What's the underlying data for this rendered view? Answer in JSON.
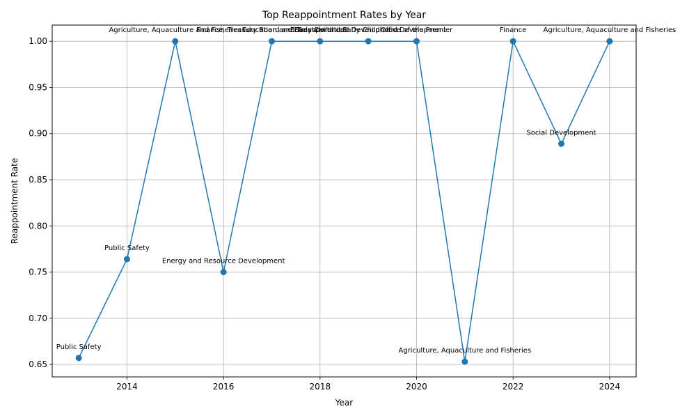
{
  "chart_data": {
    "type": "line",
    "title": "Top Reappointment Rates by Year",
    "xlabel": "Year",
    "ylabel": "Reappointment Rate",
    "xlim": [
      2012.45,
      2024.55
    ],
    "ylim": [
      0.6365,
      1.0175
    ],
    "x_ticks": [
      2014,
      2016,
      2018,
      2020,
      2022,
      2024
    ],
    "y_ticks": [
      0.65,
      0.7,
      0.75,
      0.8,
      0.85,
      0.9,
      0.95,
      1.0
    ],
    "grid": true,
    "series": [
      {
        "color": "#1f77b4",
        "marker": "circle",
        "x": [
          2013,
          2014,
          2015,
          2016,
          2017,
          2018,
          2019,
          2020,
          2021,
          2022,
          2023,
          2024
        ],
        "y": [
          0.657,
          0.764,
          1.0,
          0.75,
          1.0,
          1.0,
          1.0,
          1.0,
          0.653,
          1.0,
          0.889,
          1.0
        ]
      }
    ],
    "annotations": [
      "Public Safety",
      "Public Safety",
      "Agriculture, Aquaculture and Fisheries",
      "Energy and Resource Development",
      "Finance, Treasury Board and Transportation",
      "Education and Early Childhood Development",
      "Education and Early Childhood Development",
      "Office of the Premier",
      "Agriculture, Aquaculture and Fisheries",
      "Finance",
      "Social Development",
      "Agriculture, Aquaculture and Fisheries"
    ]
  }
}
